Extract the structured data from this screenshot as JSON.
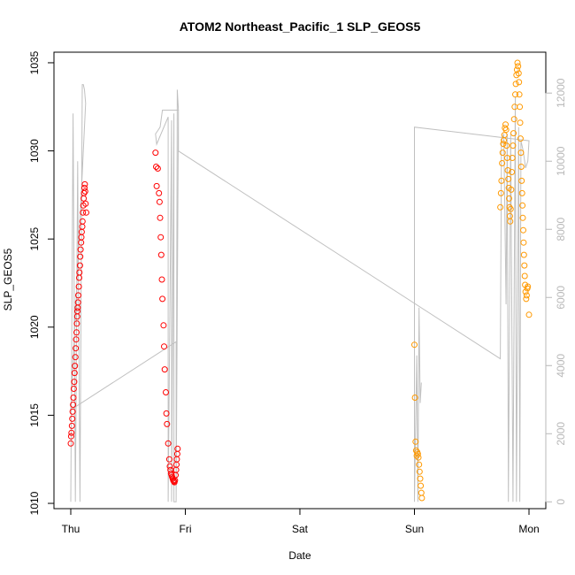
{
  "chart_data": {
    "type": "scatter",
    "title": "ATOM2 Northeast_Pacific_1 SLP_GEOS5",
    "xlabel": "Date",
    "ylabel": "SLP_GEOS5",
    "x_ticks": [
      "Thu",
      "Fri",
      "Sat",
      "Sun",
      "Mon"
    ],
    "x_range_days": [
      -0.2,
      4.2
    ],
    "ylim": [
      1009.7,
      1035.6
    ],
    "y_ticks": [
      1010,
      1015,
      1020,
      1025,
      1030,
      1035
    ],
    "y2lim": [
      -200,
      13200
    ],
    "y2_ticks": [
      0,
      2000,
      4000,
      6000,
      8000,
      10000,
      12000
    ],
    "colors": {
      "red": "#ff0000",
      "orange": "#ff9900",
      "line": "#c0c0c0",
      "axis": "#000000",
      "axis2": "#b8b8b8"
    },
    "series": [
      {
        "color": "red",
        "points": [
          [
            0.0,
            1013.4
          ],
          [
            0.003,
            1013.8
          ],
          [
            0.006,
            1014.0
          ],
          [
            0.01,
            1014.4
          ],
          [
            0.013,
            1014.8
          ],
          [
            0.016,
            1015.2
          ],
          [
            0.02,
            1015.6
          ],
          [
            0.023,
            1016.0
          ],
          [
            0.026,
            1016.5
          ],
          [
            0.03,
            1016.9
          ],
          [
            0.033,
            1017.4
          ],
          [
            0.036,
            1017.8
          ],
          [
            0.04,
            1018.3
          ],
          [
            0.043,
            1018.8
          ],
          [
            0.046,
            1019.3
          ],
          [
            0.05,
            1019.7
          ],
          [
            0.053,
            1020.2
          ],
          [
            0.056,
            1020.6
          ],
          [
            0.058,
            1020.9
          ],
          [
            0.06,
            1021.1
          ],
          [
            0.063,
            1021.4
          ],
          [
            0.066,
            1021.8
          ],
          [
            0.07,
            1022.3
          ],
          [
            0.073,
            1022.8
          ],
          [
            0.076,
            1023.1
          ],
          [
            0.08,
            1023.5
          ],
          [
            0.083,
            1024.0
          ],
          [
            0.086,
            1024.4
          ],
          [
            0.09,
            1024.8
          ],
          [
            0.093,
            1025.1
          ],
          [
            0.096,
            1025.4
          ],
          [
            0.1,
            1025.7
          ],
          [
            0.103,
            1026.0
          ],
          [
            0.106,
            1026.5
          ],
          [
            0.11,
            1026.9
          ],
          [
            0.113,
            1027.3
          ],
          [
            0.116,
            1027.6
          ],
          [
            0.12,
            1027.9
          ],
          [
            0.123,
            1028.1
          ],
          [
            0.126,
            1027.7
          ],
          [
            0.13,
            1027.0
          ],
          [
            0.135,
            1026.5
          ],
          [
            0.74,
            1029.9
          ],
          [
            0.745,
            1029.1
          ],
          [
            0.75,
            1028.0
          ],
          [
            0.76,
            1029.0
          ],
          [
            0.77,
            1027.6
          ],
          [
            0.775,
            1027.1
          ],
          [
            0.78,
            1026.2
          ],
          [
            0.785,
            1025.1
          ],
          [
            0.79,
            1024.1
          ],
          [
            0.795,
            1022.7
          ],
          [
            0.8,
            1021.6
          ],
          [
            0.81,
            1020.1
          ],
          [
            0.815,
            1018.9
          ],
          [
            0.82,
            1017.6
          ],
          [
            0.83,
            1016.3
          ],
          [
            0.835,
            1015.1
          ],
          [
            0.84,
            1014.5
          ],
          [
            0.85,
            1013.4
          ],
          [
            0.86,
            1012.5
          ],
          [
            0.865,
            1012.1
          ],
          [
            0.87,
            1011.9
          ],
          [
            0.875,
            1011.7
          ],
          [
            0.88,
            1011.6
          ],
          [
            0.885,
            1011.5
          ],
          [
            0.89,
            1011.4
          ],
          [
            0.895,
            1011.3
          ],
          [
            0.9,
            1011.25
          ],
          [
            0.905,
            1011.2
          ],
          [
            0.91,
            1011.3
          ],
          [
            0.915,
            1011.6
          ],
          [
            0.92,
            1011.9
          ],
          [
            0.923,
            1012.2
          ],
          [
            0.926,
            1012.5
          ],
          [
            0.93,
            1012.8
          ],
          [
            0.933,
            1013.1
          ]
        ]
      },
      {
        "color": "orange",
        "points": [
          [
            3.0,
            1019.0
          ],
          [
            3.005,
            1016.0
          ],
          [
            3.01,
            1013.5
          ],
          [
            3.015,
            1013.0
          ],
          [
            3.02,
            1012.7
          ],
          [
            3.025,
            1012.9
          ],
          [
            3.03,
            1012.8
          ],
          [
            3.035,
            1012.6
          ],
          [
            3.04,
            1012.2
          ],
          [
            3.045,
            1011.8
          ],
          [
            3.05,
            1011.4
          ],
          [
            3.055,
            1011.0
          ],
          [
            3.06,
            1010.6
          ],
          [
            3.065,
            1010.3
          ],
          [
            3.75,
            1026.8
          ],
          [
            3.755,
            1027.6
          ],
          [
            3.76,
            1028.3
          ],
          [
            3.765,
            1029.3
          ],
          [
            3.77,
            1029.9
          ],
          [
            3.775,
            1030.4
          ],
          [
            3.78,
            1030.6
          ],
          [
            3.785,
            1030.9
          ],
          [
            3.79,
            1031.3
          ],
          [
            3.795,
            1031.5
          ],
          [
            3.8,
            1031.2
          ],
          [
            3.805,
            1030.3
          ],
          [
            3.81,
            1029.6
          ],
          [
            3.815,
            1028.9
          ],
          [
            3.82,
            1028.4
          ],
          [
            3.823,
            1027.9
          ],
          [
            3.826,
            1027.3
          ],
          [
            3.83,
            1026.8
          ],
          [
            3.833,
            1026.3
          ],
          [
            3.836,
            1026.0
          ],
          [
            3.84,
            1026.7
          ],
          [
            3.845,
            1027.8
          ],
          [
            3.85,
            1028.8
          ],
          [
            3.855,
            1029.6
          ],
          [
            3.86,
            1030.3
          ],
          [
            3.865,
            1031.0
          ],
          [
            3.87,
            1031.8
          ],
          [
            3.875,
            1032.5
          ],
          [
            3.88,
            1033.2
          ],
          [
            3.885,
            1033.8
          ],
          [
            3.89,
            1034.3
          ],
          [
            3.895,
            1034.6
          ],
          [
            3.9,
            1035.0
          ],
          [
            3.905,
            1034.8
          ],
          [
            3.91,
            1034.4
          ],
          [
            3.913,
            1033.9
          ],
          [
            3.916,
            1033.2
          ],
          [
            3.92,
            1032.5
          ],
          [
            3.923,
            1031.6
          ],
          [
            3.926,
            1030.7
          ],
          [
            3.93,
            1029.9
          ],
          [
            3.933,
            1029.1
          ],
          [
            3.936,
            1028.3
          ],
          [
            3.94,
            1027.6
          ],
          [
            3.943,
            1026.9
          ],
          [
            3.946,
            1026.2
          ],
          [
            3.95,
            1025.5
          ],
          [
            3.953,
            1024.8
          ],
          [
            3.956,
            1024.1
          ],
          [
            3.96,
            1023.5
          ],
          [
            3.963,
            1022.9
          ],
          [
            3.966,
            1022.4
          ],
          [
            3.97,
            1022.0
          ],
          [
            3.975,
            1021.6
          ],
          [
            3.98,
            1021.8
          ],
          [
            3.985,
            1022.2
          ],
          [
            3.99,
            1022.3
          ],
          [
            4.0,
            1020.7
          ]
        ]
      }
    ],
    "line_series": {
      "color": "line",
      "axis": "right",
      "points": [
        [
          0.0,
          0
        ],
        [
          0.02,
          11400
        ],
        [
          0.04,
          0
        ],
        [
          0.06,
          10000
        ],
        [
          0.08,
          0
        ],
        [
          0.1,
          12250
        ],
        [
          0.11,
          12250
        ],
        [
          0.12,
          12100
        ],
        [
          0.13,
          11700
        ],
        [
          0.13,
          11700
        ],
        [
          0.0,
          2700
        ],
        [
          0.92,
          4700
        ],
        [
          0.92,
          0
        ],
        [
          0.93,
          12100
        ],
        [
          0.94,
          11500
        ],
        [
          0.94,
          11500
        ],
        [
          0.8,
          11500
        ],
        [
          0.78,
          11000
        ],
        [
          0.76,
          10900
        ],
        [
          0.74,
          10800
        ],
        [
          0.75,
          10500
        ],
        [
          0.85,
          11300
        ],
        [
          0.85,
          0
        ],
        [
          0.88,
          11200
        ],
        [
          0.88,
          0
        ],
        [
          0.9,
          11400
        ],
        [
          0.9,
          0
        ],
        [
          0.92,
          0
        ],
        [
          0.94,
          11500
        ],
        [
          0.94,
          10300
        ],
        [
          3.75,
          4200
        ],
        [
          3.75,
          4200
        ],
        [
          3.76,
          10600
        ],
        [
          3.78,
          10800
        ],
        [
          3.8,
          5800
        ],
        [
          3.81,
          10800
        ],
        [
          3.82,
          0
        ],
        [
          3.84,
          10800
        ],
        [
          3.86,
          0
        ],
        [
          3.88,
          11900
        ],
        [
          3.89,
          0
        ],
        [
          3.91,
          11000
        ],
        [
          3.92,
          0
        ],
        [
          3.93,
          10600
        ],
        [
          3.95,
          10300
        ],
        [
          3.97,
          9800
        ],
        [
          3.99,
          10000
        ],
        [
          4.0,
          10600
        ],
        [
          4.0,
          10600
        ],
        [
          3.0,
          11000
        ],
        [
          3.0,
          0
        ],
        [
          3.02,
          4300
        ],
        [
          3.03,
          0
        ],
        [
          3.04,
          5700
        ],
        [
          3.05,
          2900
        ],
        [
          3.06,
          3500
        ]
      ]
    }
  }
}
